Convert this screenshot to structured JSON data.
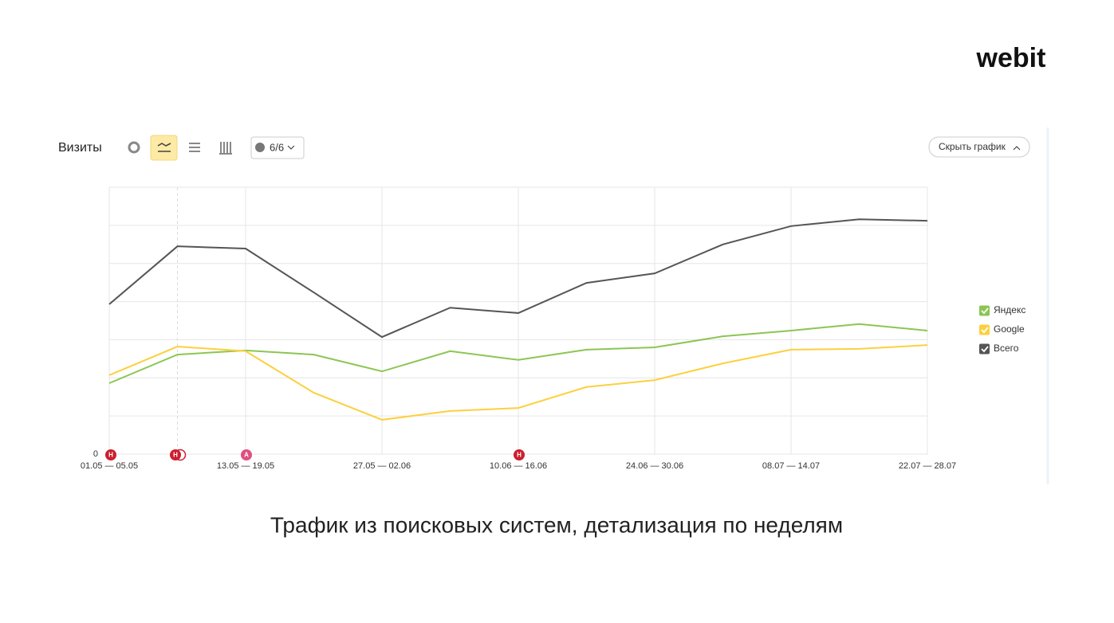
{
  "header": {
    "logo": "webit"
  },
  "chart_data": {
    "type": "line",
    "title": "Визиты",
    "filter_label": "6/6",
    "hide_button": "Скрыть график",
    "categories": [
      "01.05 — 05.05",
      null,
      "13.05 — 19.05",
      null,
      "27.05 — 02.06",
      null,
      "10.06 — 16.06",
      null,
      "24.06 — 30.06",
      null,
      "08.07 — 14.07",
      null,
      "22.07 — 28.07"
    ],
    "series": [
      {
        "name": "Яндекс",
        "color": "#8bc652",
        "values": [
          1.86,
          2.61,
          2.72,
          2.61,
          2.17,
          2.7,
          2.47,
          2.74,
          2.8,
          3.09,
          3.24,
          3.41,
          3.24
        ]
      },
      {
        "name": "Google",
        "color": "#fcd03e",
        "values": [
          2.07,
          2.82,
          2.7,
          1.61,
          0.9,
          1.13,
          1.21,
          1.76,
          1.94,
          2.38,
          2.74,
          2.76,
          2.86
        ]
      },
      {
        "name": "Всего",
        "color": "#555555",
        "values": [
          3.93,
          5.45,
          5.39,
          4.24,
          3.07,
          3.84,
          3.7,
          4.49,
          4.74,
          5.5,
          5.98,
          6.16,
          6.12
        ]
      }
    ],
    "ylim": [
      0,
      7
    ],
    "yticks": [
      0,
      {
        "value": 1,
        "label": null
      },
      {
        "value": 2,
        "label": null
      },
      {
        "value": 3,
        "label": null
      },
      {
        "value": 4,
        "label": null
      },
      {
        "value": 5,
        "label": null
      },
      {
        "value": 6,
        "label": null
      },
      {
        "value": 7,
        "label": null
      }
    ],
    "grid": true,
    "legend": "right",
    "event_markers": [
      "Н",
      "Н",
      "А",
      "Н"
    ]
  },
  "caption": "Трафик из поисковых систем, детализация по неделям"
}
